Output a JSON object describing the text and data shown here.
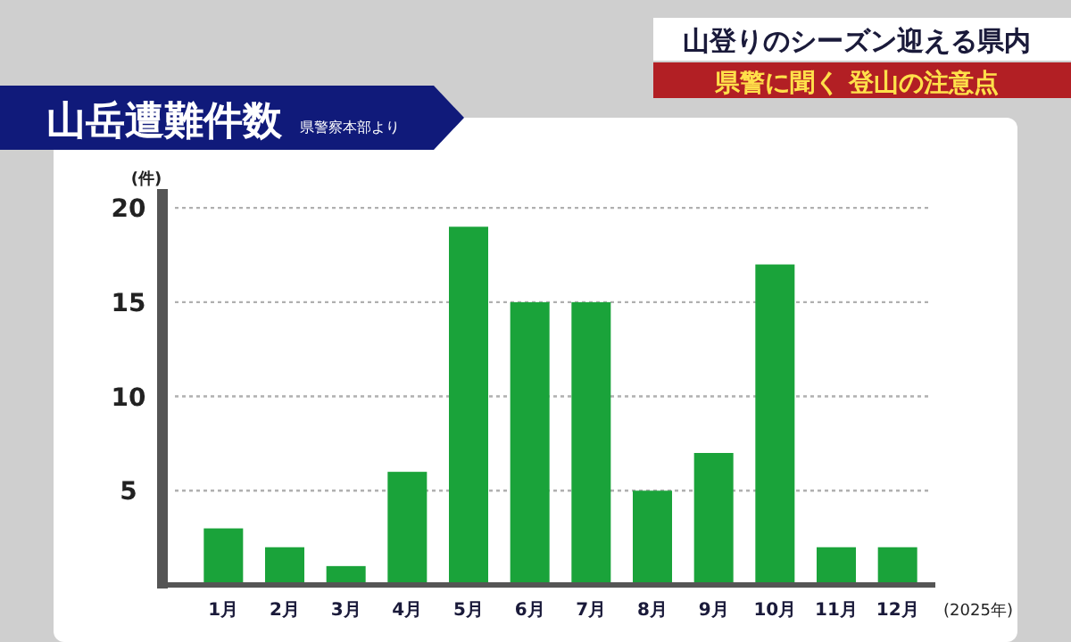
{
  "chart_data": {
    "type": "bar",
    "title": "山岳遭難件数",
    "subtitle": "県警察本部より",
    "ylabel": "(件)",
    "xlabel": "(2025年)",
    "annotations": [
      "山登りのシーズン迎える県内",
      "県警に聞く 登山の注意点"
    ],
    "categories": [
      "1月",
      "2月",
      "3月",
      "4月",
      "5月",
      "6月",
      "7月",
      "8月",
      "9月",
      "10月",
      "11月",
      "12月"
    ],
    "values": [
      3,
      2,
      1,
      6,
      19,
      15,
      15,
      5,
      7,
      17,
      2,
      2
    ],
    "color": "#1aa33a",
    "ylim": [
      0,
      21
    ],
    "yticks": [
      5,
      10,
      15,
      20
    ],
    "grid": "y"
  }
}
